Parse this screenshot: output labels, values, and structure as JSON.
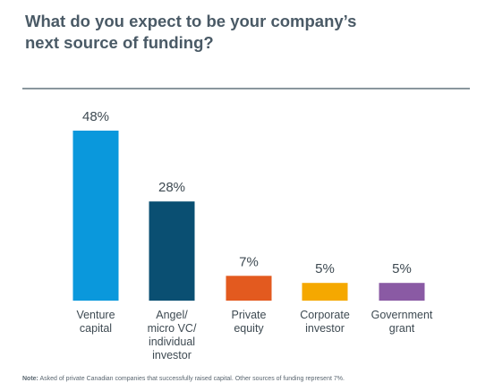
{
  "title": "What do you expect to be your company’s\nnext source of funding?",
  "note_label": "Note:",
  "note_text": "Asked of private Canadian companies that successfully raised capital. Other sources of funding represent 7%.",
  "chart_data": {
    "type": "bar",
    "categories": [
      [
        "Venture",
        "capital"
      ],
      [
        "Angel/",
        "micro VC/",
        "individual",
        "investor"
      ],
      [
        "Private",
        "equity"
      ],
      [
        "Corporate",
        "investor"
      ],
      [
        "Government",
        "grant"
      ]
    ],
    "values": [
      48,
      28,
      7,
      5,
      5
    ],
    "value_labels": [
      "48%",
      "28%",
      "7%",
      "5%",
      "5%"
    ],
    "colors": [
      "#0a98dc",
      "#0a4f72",
      "#e35a1f",
      "#f5a800",
      "#8a5aa4"
    ],
    "ylim": [
      0,
      48
    ],
    "grid": false,
    "legend": "none"
  }
}
